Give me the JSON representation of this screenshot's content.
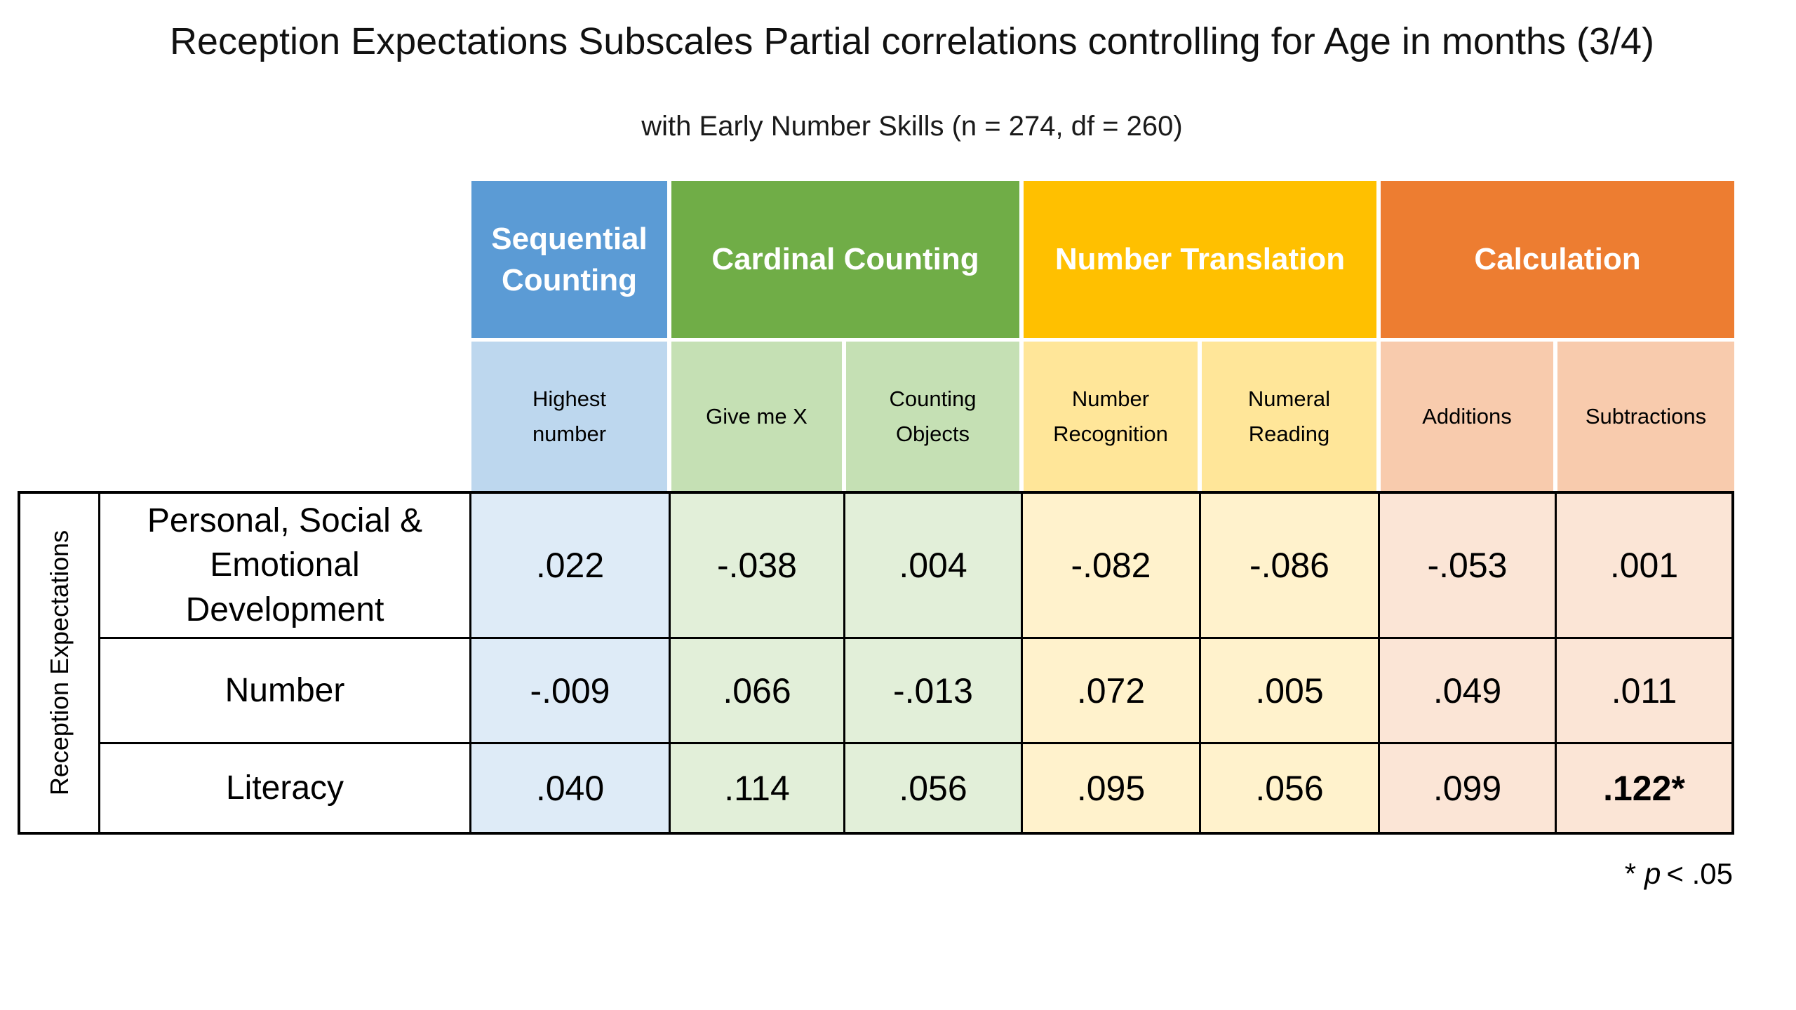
{
  "title": "Reception Expectations Subscales Partial correlations controlling for Age in months (3/4)",
  "subtitle": "with Early Number Skills (n = 274, df = 260)",
  "colors": {
    "group_sequential_counting": "#5B9BD5",
    "group_cardinal_counting": "#70AD47",
    "group_number_translation": "#FFC000",
    "group_calculation": "#ED7D31",
    "subheader_blue": "#BDD7EE",
    "subheader_green": "#C5E0B4",
    "subheader_gold": "#FFE699",
    "subheader_orange": "#F8CBAD",
    "cell_blue": "#DEEBF7",
    "cell_green": "#E2EFD9",
    "cell_gold": "#FFF2CC",
    "cell_orange": "#FBE5D6",
    "border": "#000000"
  },
  "table": {
    "row_axis_label": "Reception Expectations",
    "groups": [
      {
        "label": "Sequential\nCounting"
      },
      {
        "label": "Cardinal Counting"
      },
      {
        "label": "Number Translation"
      },
      {
        "label": "Calculation"
      }
    ],
    "columns": [
      {
        "label": "Highest\nnumber"
      },
      {
        "label": "Give me X"
      },
      {
        "label": "Counting\nObjects"
      },
      {
        "label": "Number\nRecognition"
      },
      {
        "label": "Numeral\nReading"
      },
      {
        "label": "Additions"
      },
      {
        "label": "Subtractions"
      }
    ],
    "rows": [
      {
        "label": "Personal, Social &\nEmotional\nDevelopment",
        "values": [
          ".022",
          "-.038",
          ".004",
          "-.082",
          "-.086",
          "-.053",
          ".001"
        ]
      },
      {
        "label": "Number",
        "values": [
          "-.009",
          ".066",
          "-.013",
          ".072",
          ".005",
          ".049",
          ".011"
        ]
      },
      {
        "label": "Literacy",
        "values": [
          ".040",
          ".114",
          ".056",
          ".095",
          ".056",
          ".099",
          ".122*"
        ]
      }
    ],
    "footnote": {
      "star": "*",
      "p": "p",
      "rest": "< .05"
    }
  },
  "chart_data": {
    "type": "table",
    "title": "Reception Expectations Subscales Partial correlations controlling for Age in months (3/4)",
    "subtitle": "with Early Number Skills (n = 274, df = 260)",
    "column_groups": [
      "Sequential Counting",
      "Cardinal Counting",
      "Cardinal Counting",
      "Number Translation",
      "Number Translation",
      "Calculation",
      "Calculation"
    ],
    "columns": [
      "Highest number",
      "Give me X",
      "Counting Objects",
      "Number Recognition",
      "Numeral Reading",
      "Additions",
      "Subtractions"
    ],
    "row_group": "Reception Expectations",
    "rows": [
      "Personal, Social & Emotional Development",
      "Number",
      "Literacy"
    ],
    "values": [
      [
        0.022,
        -0.038,
        0.004,
        -0.082,
        -0.086,
        -0.053,
        0.001
      ],
      [
        -0.009,
        0.066,
        -0.013,
        0.072,
        0.005,
        0.049,
        0.011
      ],
      [
        0.04,
        0.114,
        0.056,
        0.095,
        0.056,
        0.099,
        0.122
      ]
    ],
    "significant_cells": [
      {
        "row": "Literacy",
        "column": "Subtractions",
        "value": 0.122,
        "marker": "*"
      }
    ],
    "footnote": "* p < .05"
  }
}
